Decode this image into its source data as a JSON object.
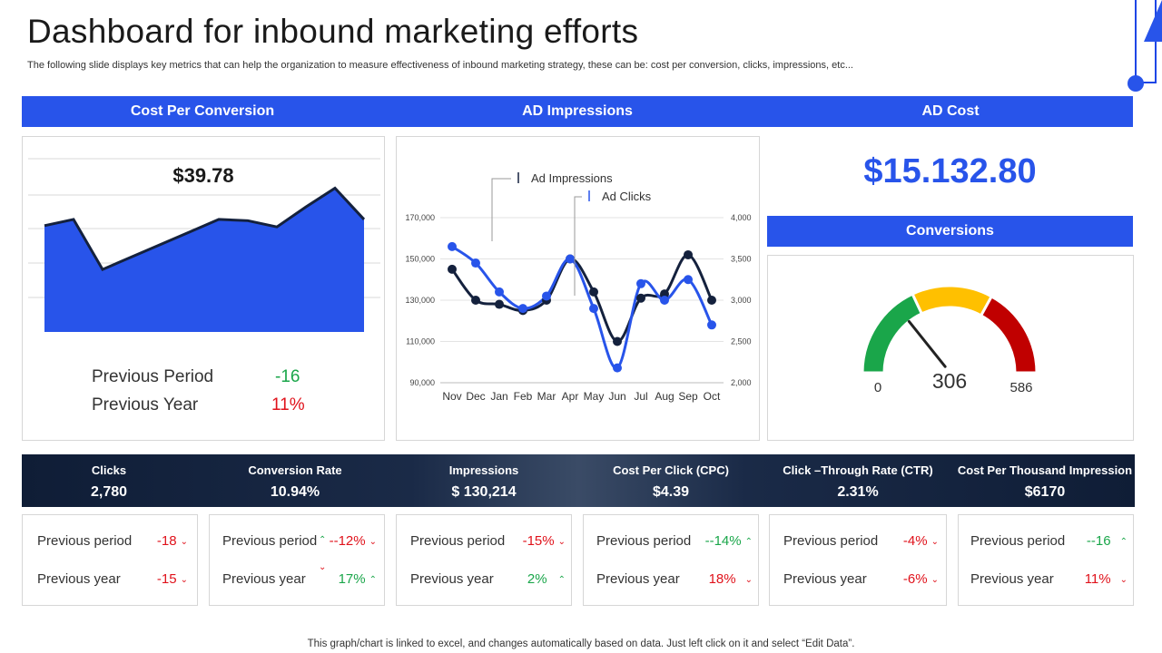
{
  "page": {
    "title": "Dashboard for inbound marketing efforts",
    "subtitle": "The following slide displays key metrics that can help the organization to measure effectiveness of inbound marketing strategy, these can be: cost per conversion, clicks, impressions, etc...",
    "footer": "This graph/chart is linked to excel,  and changes automatically based on data. Just left click on it and select “Edit Data”."
  },
  "headers": {
    "cost_per_conversion": "Cost Per Conversion",
    "ad_impressions": "AD Impressions",
    "ad_cost": "AD Cost"
  },
  "cost_per_conversion": {
    "value": "$39.78",
    "previous_period_label": "Previous Period",
    "previous_period_value": "-16",
    "previous_year_label": "Previous Year",
    "previous_year_value": "11%"
  },
  "ad_cost": {
    "value": "$15.132.80"
  },
  "conversions": {
    "label": "Conversions",
    "value": "306",
    "min_label": "0",
    "max_label": "586",
    "min": 0,
    "max": 586,
    "current": 306
  },
  "metrics": [
    {
      "label": "Clicks",
      "value": "2,780"
    },
    {
      "label": "Conversion Rate",
      "value": "10.94%"
    },
    {
      "label": "Impressions",
      "value": "$ 130,214"
    },
    {
      "label": "Cost Per Click (CPC)",
      "value": "$4.39"
    },
    {
      "label": "Click –Through Rate (CTR)",
      "value": "2.31%"
    },
    {
      "label": "Cost Per Thousand Impression",
      "value": "$6170"
    }
  ],
  "cards": [
    {
      "period_label": "Previous period",
      "period_value": "-18",
      "year_label": "Previous year",
      "year_value": "-15"
    },
    {
      "period_label": "Previous period",
      "period_value": "--12%",
      "year_label": "Previous year",
      "year_value": "17%"
    },
    {
      "period_label": "Previous period",
      "period_value": "-15%",
      "year_label": "Previous year",
      "year_value": "2%"
    },
    {
      "period_label": "Previous period",
      "period_value": "--14%",
      "year_label": "Previous year",
      "year_value": "18%"
    },
    {
      "period_label": "Previous period",
      "period_value": "-4%",
      "year_label": "Previous year",
      "year_value": "-6%"
    },
    {
      "period_label": "Previous period",
      "period_value": "--16",
      "year_label": "Previous year",
      "year_value": "11%"
    }
  ],
  "colors": {
    "accent": "#2854ea",
    "dark": "#0f1d36",
    "red": "#e0121b",
    "green": "#1aa64a",
    "gauge_green": "#1aa64a",
    "gauge_yellow": "#ffc000",
    "gauge_red": "#c00000"
  },
  "chart_data": [
    {
      "type": "area",
      "title": "Cost Per Conversion",
      "values": [
        37,
        38,
        30,
        32,
        34,
        36,
        38,
        37.8,
        36.8,
        40,
        43,
        38
      ],
      "ylim": [
        20,
        48
      ]
    },
    {
      "type": "line",
      "title": "AD Impressions",
      "categories": [
        "Nov",
        "Dec",
        "Jan",
        "Feb",
        "Mar",
        "Apr",
        "May",
        "Jun",
        "Jul",
        "Aug",
        "Sep",
        "Oct"
      ],
      "series": [
        {
          "name": "Ad Impressions",
          "axis": "left",
          "values": [
            145000,
            130000,
            128000,
            125000,
            130000,
            150000,
            134000,
            110000,
            131000,
            133000,
            152000,
            130000
          ]
        },
        {
          "name": "Ad Clicks",
          "axis": "right",
          "values": [
            3650,
            3450,
            3100,
            2900,
            3050,
            3500,
            2900,
            2180,
            3200,
            3000,
            3250,
            2700
          ]
        }
      ],
      "y_left": {
        "ticks": [
          "90,000",
          "110,000",
          "130,000",
          "150,000",
          "170,000"
        ],
        "range": [
          90000,
          170000
        ]
      },
      "y_right": {
        "ticks": [
          "2,000",
          "2,500",
          "3,000",
          "3,500",
          "4,000"
        ],
        "range": [
          2000,
          4000
        ]
      },
      "legend": [
        "Ad Impressions",
        "Ad Clicks"
      ]
    }
  ]
}
